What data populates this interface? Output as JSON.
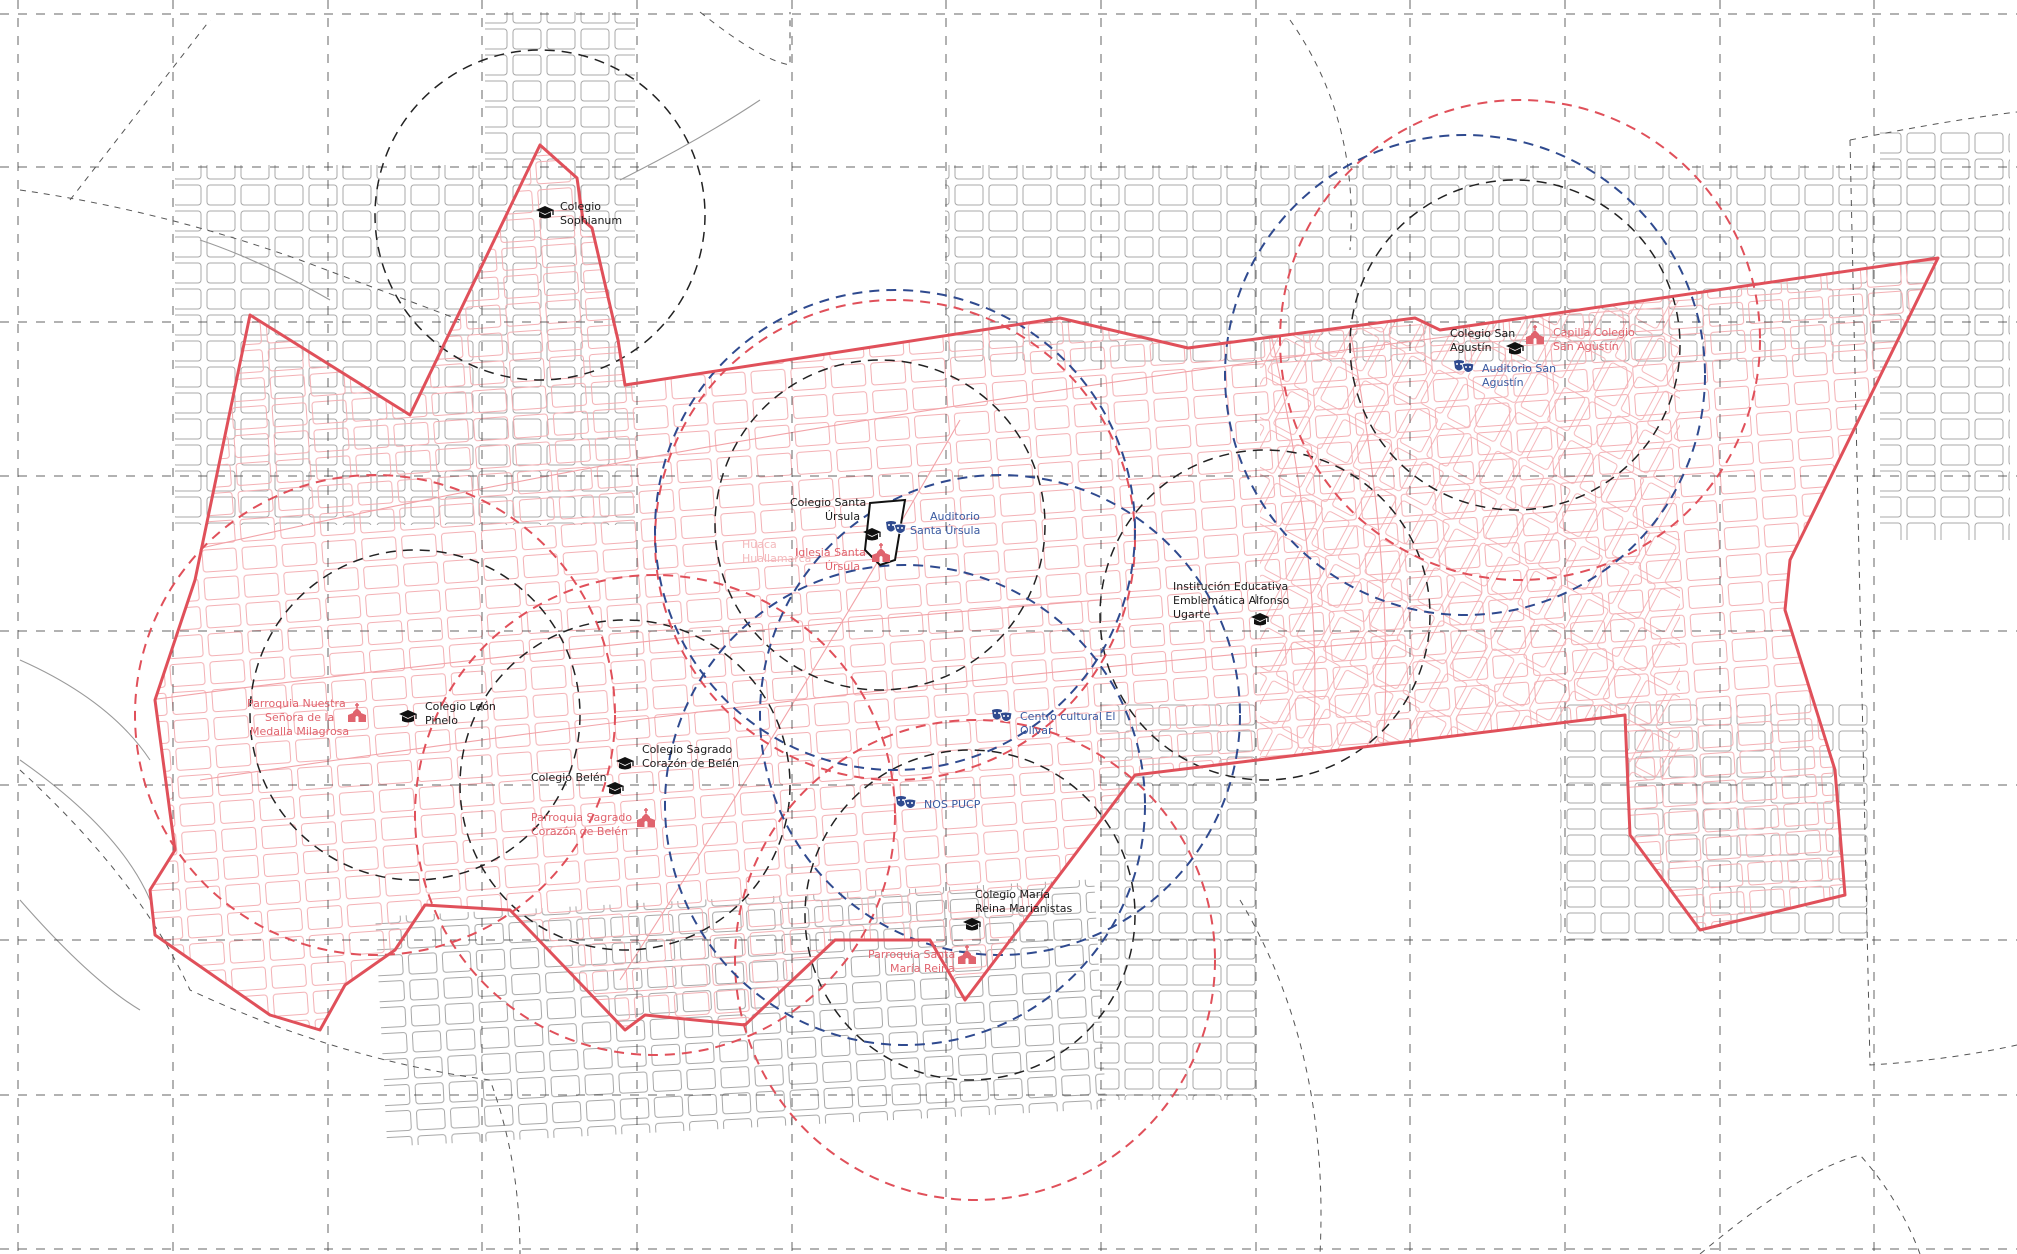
{
  "colors": {
    "school": "#1a1a1a",
    "church": "#e0646e",
    "culture": "#2f4a8f",
    "boundary": "#e0505a",
    "streets_inside": "#f2a3a8",
    "streets_outside": "#9a9a9a"
  },
  "schools": [
    {
      "label1": "Colegio",
      "label2": "Sophianum",
      "icon": "graduation-cap-icon"
    },
    {
      "label1": "Colegio Santa",
      "label2": "Úrsula",
      "icon": "graduation-cap-icon"
    },
    {
      "label1": "Colegio San",
      "label2": "Agustín",
      "icon": "graduation-cap-icon"
    },
    {
      "label1": "Institución Educativa",
      "label2": "Emblemática Alfonso",
      "label3": "Ugarte",
      "icon": "graduation-cap-icon"
    },
    {
      "label1": "Colegio León",
      "label2": "Pinelo",
      "icon": "graduation-cap-icon"
    },
    {
      "label1": "Colegio Sagrado",
      "label2": "Corazón de Belén",
      "icon": "graduation-cap-icon"
    },
    {
      "label1": "Colegio Belén",
      "icon": "graduation-cap-icon"
    },
    {
      "label1": "Colegio María",
      "label2": "Reina Marianistas",
      "icon": "graduation-cap-icon"
    }
  ],
  "churches": [
    {
      "label1": "Capilla Colegio",
      "label2": "San Agustín",
      "icon": "church-icon"
    },
    {
      "label1": "Iglesia Santa",
      "label2": "Úrsula",
      "icon": "church-icon"
    },
    {
      "label1": "Parroquia Nuestra",
      "label2": "Señora de la",
      "label3": "Medalla Milagrosa",
      "icon": "church-icon"
    },
    {
      "label1": "Parroquia Sagrado",
      "label2": "Corazón de Belén",
      "icon": "church-icon"
    },
    {
      "label1": "Parroquia Santa",
      "label2": "María Reina",
      "icon": "church-icon"
    }
  ],
  "cultural": [
    {
      "label1": "Auditorio",
      "label2": "Santa Úrsula",
      "icon": "theater-masks-icon"
    },
    {
      "label1": "Auditorio San",
      "label2": "Agustín",
      "icon": "theater-masks-icon"
    },
    {
      "label1": "Centro cultural El",
      "label2": "Olivar",
      "icon": "theater-masks-icon"
    },
    {
      "label1": "NOS PUCP",
      "icon": "theater-masks-icon"
    }
  ],
  "faint_labels": [
    {
      "label1": "Huaca",
      "label2": "Huallamarca"
    }
  ]
}
